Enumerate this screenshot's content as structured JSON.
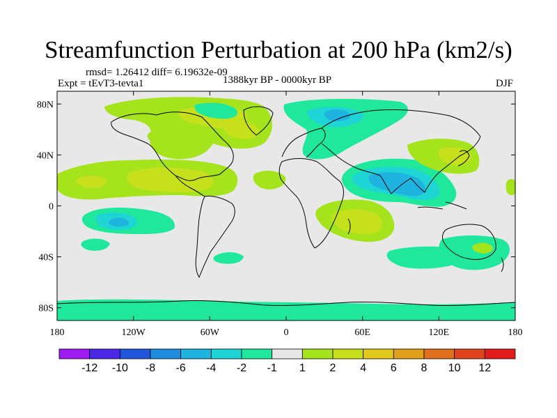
{
  "title": "Streamfunction Perturbation at 200 hPa (km2/s)",
  "stats": "rmsd= 1.26412 diff= 6.19632e-09",
  "experiment": "Expt = tEvT3-tevta1",
  "period": "1388kyr BP - 0000kyr BP",
  "season": "DJF",
  "chart_data": {
    "type": "heatmap",
    "projection": "cylindrical equidistant",
    "variable": "200 hPa streamfunction perturbation",
    "units": "km2/s",
    "lon_range": [
      -180,
      180
    ],
    "lat_range": [
      -90,
      90
    ],
    "x_ticks": [
      "180",
      "120W",
      "60W",
      "0",
      "60E",
      "120E",
      "180"
    ],
    "y_ticks": [
      "80N",
      "40N",
      "0",
      "40S",
      "80S"
    ],
    "colorbar": {
      "levels": [
        "-12",
        "-10",
        "-8",
        "-6",
        "-4",
        "-2",
        "-1",
        "1",
        "2",
        "4",
        "6",
        "8",
        "10",
        "12"
      ],
      "colors": [
        "#9d1bf0",
        "#4b27e6",
        "#1f56dc",
        "#1f8bdd",
        "#1fb3e0",
        "#1fd4d4",
        "#1fe89c",
        "#e8e8e8",
        "#a5e31c",
        "#c6e01c",
        "#e0c81c",
        "#e0a01c",
        "#e0701c",
        "#e0441c",
        "#e01c1c"
      ]
    },
    "features": [
      {
        "name": "negative center over South Asia / Bay of Bengal",
        "lon": 80,
        "lat": 22,
        "value": -4
      },
      {
        "name": "negative center over eastern Europe / Siberia",
        "lon": 45,
        "lat": 65,
        "value": -3
      },
      {
        "name": "negative center over tropical South Pacific",
        "lon": -138,
        "lat": -15,
        "value": -3
      },
      {
        "name": "positive center over Alaska / NW Canada",
        "lon": -115,
        "lat": 62,
        "value": 2
      },
      {
        "name": "positive band tropical North Atlantic / Caribbean",
        "lon": -80,
        "lat": 15,
        "value": 2
      },
      {
        "name": "positive center over southern Africa",
        "lon": 60,
        "lat": -15,
        "value": 3
      },
      {
        "name": "positive center over East Asia / Japan",
        "lon": 130,
        "lat": 35,
        "value": 2
      },
      {
        "name": "negative center south of Australia",
        "lon": 150,
        "lat": -40,
        "value": -2
      }
    ]
  }
}
